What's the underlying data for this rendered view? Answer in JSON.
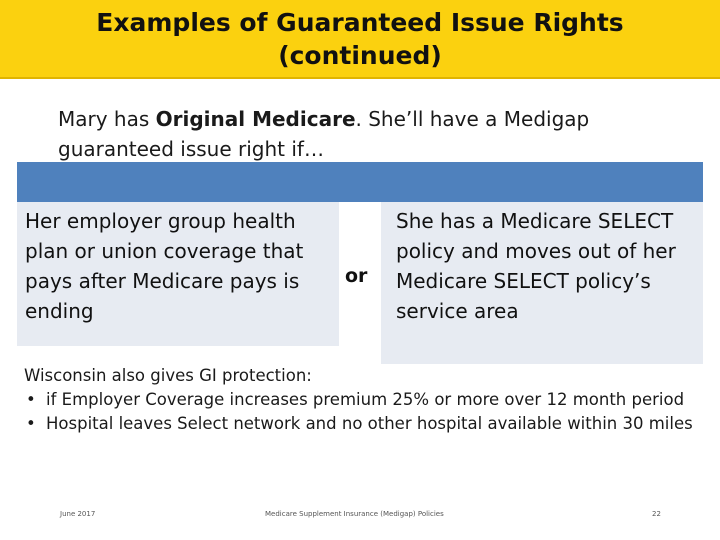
{
  "title": {
    "line1": "Examples of Guaranteed Issue Rights",
    "line2": "(continued)"
  },
  "intro": {
    "prefix": "Mary has ",
    "bold": "Original Medicare",
    "suffix": ". She’ll have a Medigap guaranteed issue right if…"
  },
  "left_box": {
    "text": "Her employer group health plan or union coverage that pays after Medicare pays is ending"
  },
  "connector": "or",
  "right_box": {
    "text": "She has a Medicare SELECT policy and moves out of her Medicare SELECT policy’s service area"
  },
  "wisconsin": {
    "heading": "Wisconsin also gives GI protection:",
    "bullets": [
      "if Employer Coverage increases premium 25% or more over 12 month period",
      "Hospital leaves Select network and no other hospital available within 30 miles"
    ],
    "bullet_glyph": "•"
  },
  "footer": {
    "date": "June 2017",
    "center": "Medicare Supplement Insurance (Medigap) Policies",
    "page": "22"
  },
  "colors": {
    "title_bg": "#fbd10f",
    "bar_blue": "#4f81bd",
    "box_bg": "#e7ebf2"
  }
}
